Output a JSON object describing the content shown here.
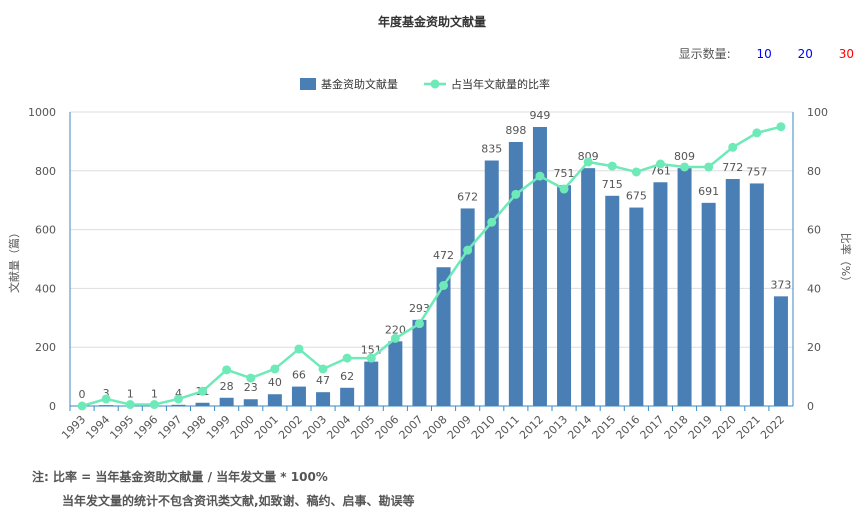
{
  "chart_data": {
    "type": "bar+line",
    "title": "年度基金资助文献量",
    "categories": [
      "1993",
      "1994",
      "1995",
      "1996",
      "1997",
      "1998",
      "1999",
      "2000",
      "2001",
      "2002",
      "2003",
      "2004",
      "2005",
      "2006",
      "2007",
      "2008",
      "2009",
      "2010",
      "2011",
      "2012",
      "2013",
      "2014",
      "2015",
      "2016",
      "2017",
      "2018",
      "2019",
      "2020",
      "2021",
      "2022"
    ],
    "series": [
      {
        "name": "基金资助文献量",
        "type": "bar",
        "axis": "left",
        "color": "#4a7fb5",
        "values": [
          0,
          3,
          1,
          1,
          4,
          11,
          28,
          23,
          40,
          66,
          47,
          62,
          151,
          220,
          293,
          472,
          672,
          835,
          898,
          949,
          751,
          809,
          715,
          675,
          761,
          809,
          691,
          772,
          757,
          373
        ]
      },
      {
        "name": "占当年文献量的比率",
        "type": "line",
        "axis": "right",
        "color": "#6eeab8",
        "values": [
          0,
          2.4,
          0.5,
          0.5,
          2.4,
          5,
          12.3,
          9.5,
          12.6,
          19.4,
          12.6,
          16.3,
          16.3,
          23,
          28,
          41,
          53,
          62.5,
          72,
          78.2,
          73.8,
          83,
          81.6,
          79.6,
          82.3,
          81.3,
          81.3,
          88,
          92.9,
          95
        ]
      }
    ],
    "ylabel": "文献量（篇）",
    "ylabel_right": "比率（%）",
    "ylim": [
      0,
      1000
    ],
    "yticks": [
      "0",
      "200",
      "400",
      "600",
      "800",
      "1000"
    ],
    "ylim_right": [
      0,
      100
    ],
    "yticks_right": [
      "0",
      "20",
      "40",
      "60",
      "80",
      "100"
    ],
    "grid": true,
    "legend": "top-center"
  },
  "controls": {
    "label": "显示数量:",
    "options": [
      "10",
      "20",
      "30"
    ],
    "selected": "30",
    "color_option": "#0000ff",
    "color_selected": "#ff0000"
  },
  "notes": {
    "line1": "注:   比率 = 当年基金资助文献量 / 当年发文量 * 100%",
    "line2": "当年发文量的统计不包含资讯类文献,如致谢、稿约、启事、勘误等"
  }
}
